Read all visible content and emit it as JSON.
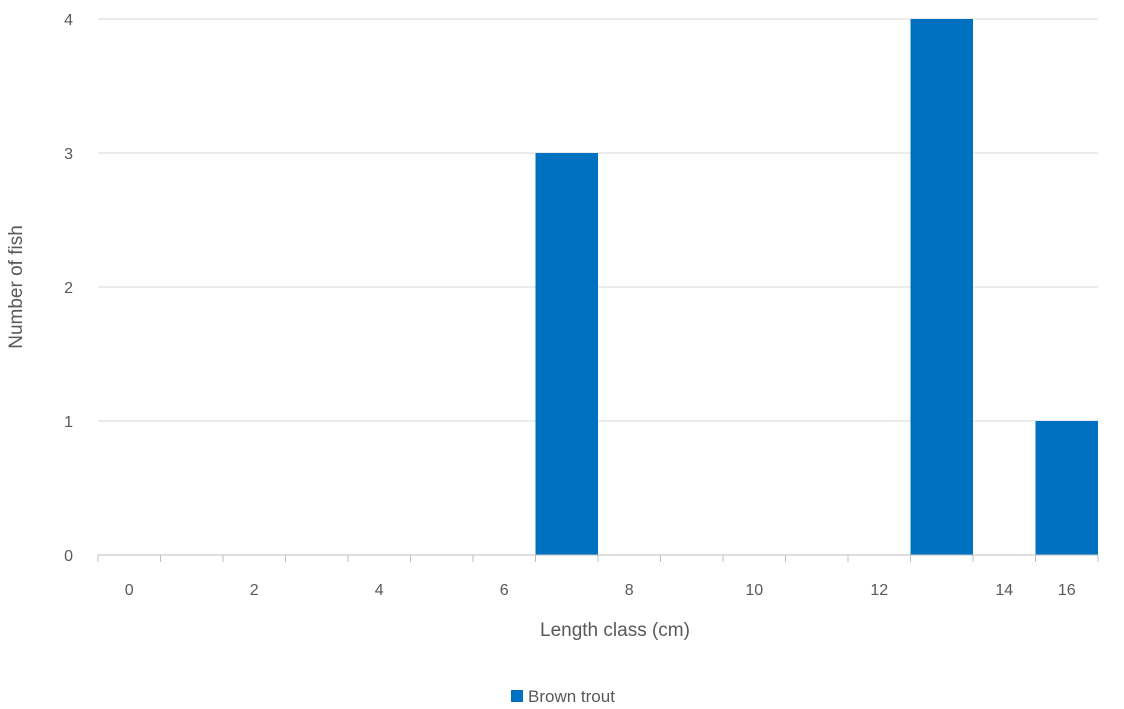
{
  "chart_data": {
    "type": "bar",
    "title": "",
    "xlabel": "Length class (cm)",
    "ylabel": "Number of fish",
    "x_ticks": [
      "0",
      "2",
      "4",
      "6",
      "8",
      "10",
      "12",
      "14",
      "16"
    ],
    "y_ticks": [
      "0",
      "1",
      "2",
      "3",
      "4"
    ],
    "xlim": [
      0,
      16
    ],
    "ylim": [
      0,
      4
    ],
    "grid": "horizontal",
    "legend_position": "bottom",
    "series": [
      {
        "name": "Brown trout",
        "color": "#0070C0",
        "bins": [
          {
            "from": 0,
            "to": 1,
            "value": 0
          },
          {
            "from": 1,
            "to": 2,
            "value": 0
          },
          {
            "from": 2,
            "to": 3,
            "value": 0
          },
          {
            "from": 3,
            "to": 4,
            "value": 0
          },
          {
            "from": 4,
            "to": 5,
            "value": 0
          },
          {
            "from": 5,
            "to": 6,
            "value": 0
          },
          {
            "from": 6,
            "to": 7,
            "value": 0
          },
          {
            "from": 7,
            "to": 8,
            "value": 3
          },
          {
            "from": 8,
            "to": 9,
            "value": 0
          },
          {
            "from": 9,
            "to": 10,
            "value": 0
          },
          {
            "from": 10,
            "to": 11,
            "value": 0
          },
          {
            "from": 11,
            "to": 12,
            "value": 0
          },
          {
            "from": 12,
            "to": 13,
            "value": 0
          },
          {
            "from": 13,
            "to": 14,
            "value": 4
          },
          {
            "from": 14,
            "to": 15,
            "value": 0
          },
          {
            "from": 15,
            "to": 16,
            "value": 1
          }
        ]
      }
    ],
    "colors": {
      "grid": "#D9D9D9",
      "axis": "#BFBFBF",
      "text": "#595959"
    }
  }
}
